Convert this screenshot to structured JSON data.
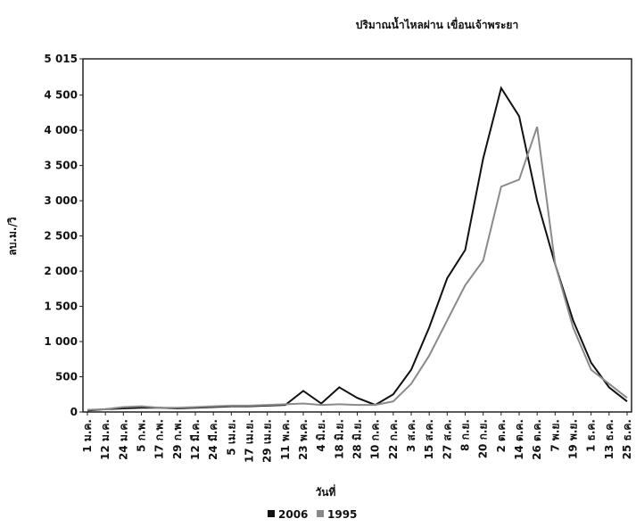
{
  "chart_data": {
    "type": "line",
    "title": "ปริมาณน้ำไหลผ่าน เขื่อนเจ้าพระยา",
    "y_label": "ลบ.ม./วิ",
    "x_label": "วันที่",
    "categories": [
      "1 ม.ค.",
      "12 ม.ค.",
      "24 ม.ค.",
      "5 ก.พ.",
      "17 ก.พ.",
      "29 ก.พ.",
      "12 มี.ค.",
      "24 มี.ค.",
      "5 เม.ย.",
      "17 เม.ย.",
      "29 เม.ย.",
      "11 พ.ค.",
      "23 พ.ค.",
      "4 มิ.ย.",
      "18 มิ.ย.",
      "28 มิ.ย.",
      "10 ก.ค.",
      "22 ก.ค.",
      "3 ส.ค.",
      "15 ส.ค.",
      "27 ส.ค.",
      "8 ก.ย.",
      "20 ก.ย.",
      "2 ต.ค.",
      "14 ต.ค.",
      "26 ต.ค.",
      "7 พ.ย.",
      "19 พ.ย.",
      "1 ธ.ค.",
      "13 ธ.ค.",
      "25 ธ.ค."
    ],
    "series": [
      {
        "name": "2006",
        "color": "#111111",
        "values": [
          20,
          40,
          50,
          60,
          60,
          50,
          60,
          70,
          80,
          80,
          90,
          100,
          300,
          120,
          350,
          200,
          100,
          250,
          600,
          1200,
          1900,
          2300,
          3600,
          4600,
          4200,
          3000,
          2100,
          1300,
          700,
          350,
          150
        ]
      },
      {
        "name": "1995",
        "color": "#8a8a8a",
        "values": [
          30,
          40,
          70,
          80,
          60,
          60,
          70,
          80,
          90,
          90,
          100,
          110,
          120,
          100,
          110,
          100,
          100,
          150,
          400,
          800,
          1300,
          1800,
          2150,
          3200,
          3300,
          4050,
          2100,
          1200,
          600,
          400,
          200
        ]
      }
    ],
    "ylim": [
      0,
      5015
    ],
    "yticks": [
      0,
      500,
      {
        "value": 1000,
        "label": "1 000"
      },
      {
        "value": 1500,
        "label": "1 500"
      },
      {
        "value": 2000,
        "label": "2 000"
      },
      {
        "value": 2500,
        "label": "2 500"
      },
      {
        "value": 3000,
        "label": "3 000"
      },
      {
        "value": 3500,
        "label": "3 500"
      },
      {
        "value": 4000,
        "label": "4 000"
      },
      {
        "value": 4500,
        "label": "4 500"
      },
      {
        "value": 5015,
        "label": "5 015"
      }
    ]
  }
}
